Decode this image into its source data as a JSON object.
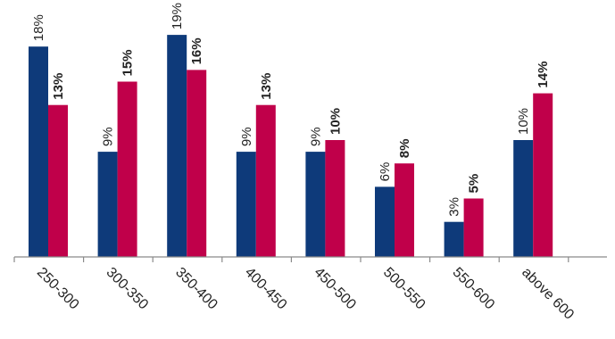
{
  "chart_data": {
    "type": "bar",
    "categories": [
      "250-300",
      "300-350",
      "350-400",
      "400-450",
      "450-500",
      "500-550",
      "550-600",
      "above 600"
    ],
    "series": [
      {
        "values": [
          18,
          9,
          19,
          9,
          9,
          6,
          3,
          10
        ],
        "color": "#0e3a7a",
        "labels": [
          "18%",
          "9%",
          "19%",
          "9%",
          "9%",
          "6%",
          "3%",
          "10%"
        ]
      },
      {
        "values": [
          13,
          15,
          16,
          13,
          10,
          8,
          5,
          14
        ],
        "color": "#c0004a",
        "labels": [
          "13%",
          "15%",
          "16%",
          "13%",
          "10%",
          "8%",
          "5%",
          "14%"
        ]
      }
    ],
    "ylim": [
      0,
      20
    ],
    "grid": false,
    "legend": "none"
  }
}
